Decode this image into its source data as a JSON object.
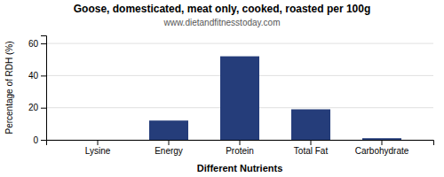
{
  "chart_data": {
    "type": "bar",
    "title": "Goose, domesticated, meat only, cooked, roasted per 100g",
    "subtitle": "www.dietandfitnesstoday.com",
    "categories": [
      "Lysine",
      "Energy",
      "Protein",
      "Total Fat",
      "Carbohydrate"
    ],
    "values": [
      0,
      12,
      52,
      19,
      1
    ],
    "color": "#253d7a",
    "xlabel": "Different Nutrients",
    "ylabel": "Percentage of RDH (%)",
    "ylim": [
      0,
      65
    ],
    "yticks": [
      0,
      20,
      40,
      60
    ],
    "grid": true
  }
}
